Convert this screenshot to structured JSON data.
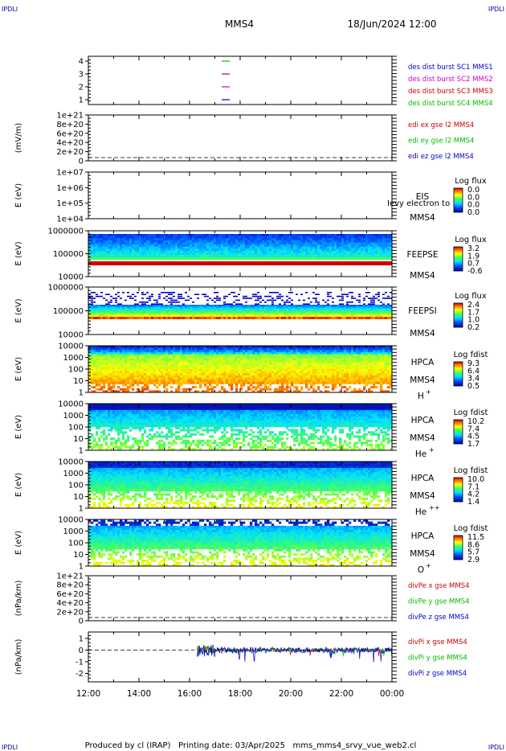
{
  "header": {
    "left_tag": "IPDLI",
    "right_tag": "IPDLI",
    "title": "MMS4",
    "date": "18/Jun/2024 12:00"
  },
  "footer": {
    "left_tag": "IPDLI",
    "right_tag": "IPDLI",
    "text": "Produced by cl (IRAP)   Printing date: 03/Apr/2025   mms_mms4_srvy_vue_web2.cl"
  },
  "chart_data": {
    "type": "heatmap",
    "x_tick_labels": [
      "12:00",
      "14:00",
      "16:00",
      "18:00",
      "20:00",
      "22:00",
      "00:00"
    ],
    "panels": [
      {
        "id": "burst",
        "ylabel": "",
        "y_ticks": [
          "4",
          "3",
          "2",
          "1"
        ],
        "legend": [
          {
            "text": "des dist burst SC1 MMS1",
            "color": "#0000cc"
          },
          {
            "text": "des dist burst SC2 MMS2",
            "color": "#cc00cc"
          },
          {
            "text": "des dist burst SC3 MMS3",
            "color": "#cc0000"
          },
          {
            "text": "des dist burst SC4 MMS4",
            "color": "#00bb00"
          }
        ]
      },
      {
        "id": "edi",
        "ylabel": "(mV/m)",
        "y_ticks": [
          "1e+21",
          "8e+20",
          "6e+20",
          "4e+20",
          "2e+20",
          "0"
        ],
        "legend": [
          {
            "text": "edi ex gse l2 MMS4",
            "color": "#cc0000"
          },
          {
            "text": "edi ey gse l2 MMS4",
            "color": "#00bb00"
          },
          {
            "text": "edi ez gse l2 MMS4",
            "color": "#0000cc"
          }
        ]
      },
      {
        "id": "eis",
        "ylabel": "E (eV)",
        "y_ticks": [
          "1e+07",
          "1e+06",
          "1e+05",
          "1e+04"
        ],
        "instrument": "EIS",
        "overlay": "Ievy electron to",
        "spacecraft": "MMS4",
        "cbar_title": "Log flux",
        "cbar_labels": [
          "0.0",
          "0.0",
          "0.0",
          "0.0"
        ]
      },
      {
        "id": "feepse",
        "ylabel": "E (eV)",
        "y_ticks": [
          "1000000",
          "100000",
          "10000"
        ],
        "instrument": "FEEPSE",
        "spacecraft": "MMS4",
        "cbar_title": "Log flux",
        "cbar_labels": [
          "3.2",
          "1.9",
          "0.7",
          "-0.6"
        ]
      },
      {
        "id": "feepsi",
        "ylabel": "E (eV)",
        "y_ticks": [
          "1000000",
          "100000",
          "10000"
        ],
        "instrument": "FEEPSI",
        "spacecraft": "MMS4",
        "cbar_title": "Log flux",
        "cbar_labels": [
          "2.4",
          "1.7",
          "1.0",
          "0.2"
        ]
      },
      {
        "id": "hpca_h",
        "ylabel": "E (eV)",
        "y_ticks": [
          "10000",
          "1000",
          "100",
          "10",
          "1"
        ],
        "instrument": "HPCA",
        "spacecraft": "MMS4",
        "species": "H",
        "species_sup": "+",
        "cbar_title": "Log fdist",
        "cbar_labels": [
          "9.3",
          "6.4",
          "3.4",
          "0.5"
        ]
      },
      {
        "id": "hpca_he1",
        "ylabel": "E (eV)",
        "y_ticks": [
          "10000",
          "1000",
          "100",
          "10",
          "1"
        ],
        "instrument": "HPCA",
        "spacecraft": "MMS4",
        "species": "He",
        "species_sup": "+",
        "cbar_title": "Log fdist",
        "cbar_labels": [
          "10.2",
          "7.4",
          "4.5",
          "1.7"
        ]
      },
      {
        "id": "hpca_he2",
        "ylabel": "E (eV)",
        "y_ticks": [
          "10000",
          "1000",
          "100",
          "10",
          "1"
        ],
        "instrument": "HPCA",
        "spacecraft": "MMS4",
        "species": "He",
        "species_sup": "++",
        "cbar_title": "Log fdist",
        "cbar_labels": [
          "10.0",
          "7.1",
          "4.2",
          "1.4"
        ]
      },
      {
        "id": "hpca_o",
        "ylabel": "E (eV)",
        "y_ticks": [
          "10000",
          "1000",
          "100",
          "10",
          "1"
        ],
        "instrument": "HPCA",
        "spacecraft": "MMS4",
        "species": "O",
        "species_sup": "+",
        "cbar_title": "Log fdist",
        "cbar_labels": [
          "11.5",
          "8.6",
          "5.7",
          "2.9"
        ]
      },
      {
        "id": "divpe",
        "ylabel": "(nPa/km)",
        "y_ticks": [
          "1e+21",
          "8e+20",
          "6e+20",
          "4e+20",
          "2e+20",
          "0"
        ],
        "legend": [
          {
            "text": "divPe x gse MMS4",
            "color": "#cc0000"
          },
          {
            "text": "divPe y gse MMS4",
            "color": "#00bb00"
          },
          {
            "text": "divPe z gse MMS4",
            "color": "#0000cc"
          }
        ]
      },
      {
        "id": "divpi",
        "ylabel": "(nPa/km)",
        "y_ticks": [
          "1",
          "0",
          "-1",
          "-2"
        ],
        "ylim": [
          -2.4,
          1.4
        ],
        "legend": [
          {
            "text": "divPi x gse MMS4",
            "color": "#cc0000"
          },
          {
            "text": "divPi y gse MMS4",
            "color": "#00bb00"
          },
          {
            "text": "divPi z gse MMS4",
            "color": "#0000cc"
          }
        ]
      }
    ]
  }
}
